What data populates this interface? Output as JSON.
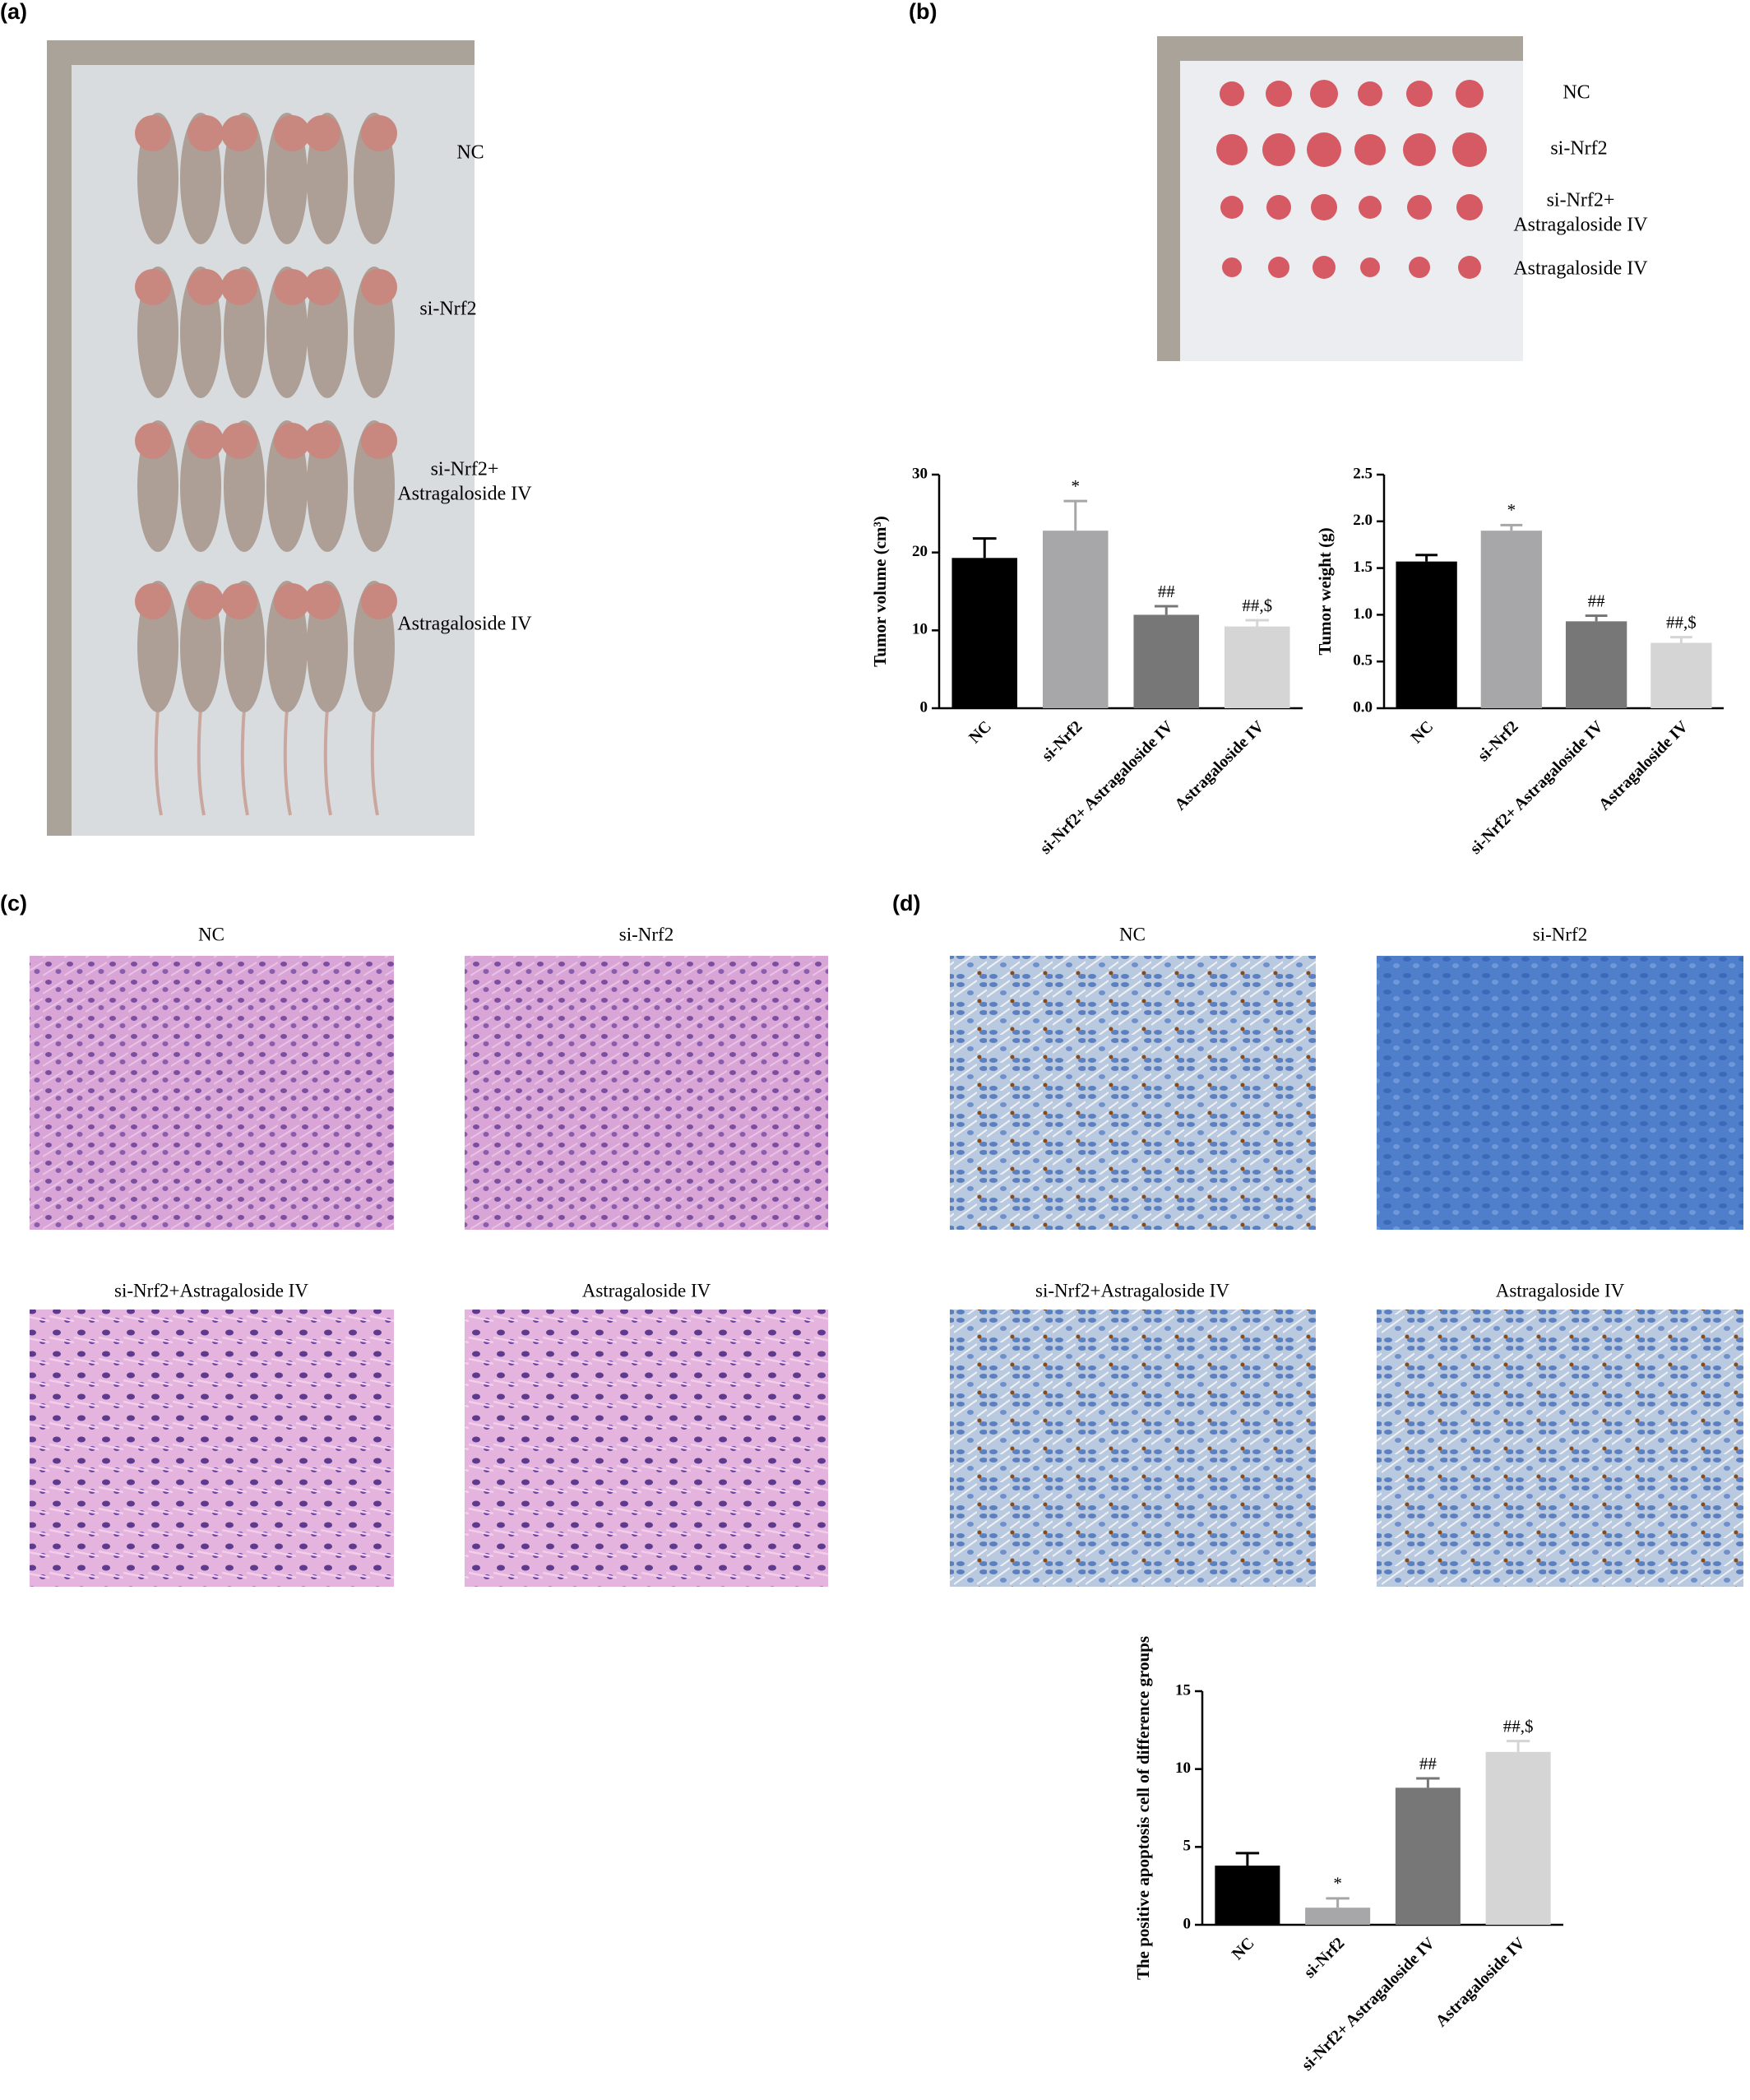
{
  "panels": {
    "a": {
      "label": "(a)",
      "groups": [
        [
          "NC"
        ],
        [
          "si-Nrf2"
        ],
        [
          "si-Nrf2+",
          "Astragaloside IV"
        ],
        [
          "Astragaloside IV"
        ]
      ]
    },
    "b": {
      "label": "(b)",
      "groups": [
        [
          "NC"
        ],
        [
          "si-Nrf2"
        ],
        [
          "si-Nrf2+",
          "Astragaloside IV"
        ],
        [
          "Astragaloside IV"
        ]
      ]
    },
    "c": {
      "label": "(c)",
      "titles": [
        "NC",
        "si-Nrf2",
        "si-Nrf2+Astragaloside IV",
        "Astragaloside IV"
      ]
    },
    "d": {
      "label": "(d)",
      "titles": [
        "NC",
        "si-Nrf2",
        "si-Nrf2+Astragaloside IV",
        "Astragaloside IV"
      ]
    }
  },
  "chart_data": [
    {
      "type": "bar",
      "ylabel": "Tumor volume (cm³)",
      "categories": [
        "NC",
        "si-Nrf2",
        "si-Nrf2+ Astragaloside IV",
        "Astragaloside IV"
      ],
      "values": [
        19.3,
        22.8,
        12.0,
        10.5
      ],
      "errors": [
        2.5,
        3.8,
        1.1,
        0.8
      ],
      "annotations": [
        null,
        "*",
        "##",
        "##,$"
      ],
      "colors": [
        "#000000",
        "#a7a7a9",
        "#777777",
        "#d5d5d5"
      ],
      "ylim": [
        0,
        30
      ],
      "yticks": [
        0,
        10,
        20,
        30
      ]
    },
    {
      "type": "bar",
      "ylabel": "Tumor weight (g)",
      "categories": [
        "NC",
        "si-Nrf2",
        "si-Nrf2+ Astragaloside IV",
        "Astragaloside IV"
      ],
      "values": [
        1.57,
        1.9,
        0.93,
        0.7
      ],
      "errors": [
        0.07,
        0.06,
        0.06,
        0.06
      ],
      "annotations": [
        null,
        "*",
        "##",
        "##,$"
      ],
      "colors": [
        "#000000",
        "#a7a7a9",
        "#777777",
        "#d5d5d5"
      ],
      "ylim": [
        0,
        2.5
      ],
      "yticks": [
        {
          "value": 0,
          "label": "0.0"
        },
        0.5,
        {
          "value": 1,
          "label": "1.0"
        },
        1.5,
        {
          "value": 2,
          "label": "2.0"
        },
        2.5
      ]
    },
    {
      "type": "bar",
      "ylabel": "The positive apoptosis cell of difference groups",
      "categories": [
        "NC",
        "si-Nrf2",
        "si-Nrf2+ Astragaloside IV",
        "Astragaloside IV"
      ],
      "values": [
        3.8,
        1.1,
        8.8,
        11.1
      ],
      "errors": [
        0.8,
        0.6,
        0.6,
        0.7
      ],
      "annotations": [
        null,
        "*",
        "##",
        "##,$"
      ],
      "colors": [
        "#000000",
        "#a7a7a9",
        "#777777",
        "#d5d5d5"
      ],
      "ylim": [
        0,
        15
      ],
      "yticks": [
        0,
        5,
        10,
        15
      ]
    }
  ]
}
